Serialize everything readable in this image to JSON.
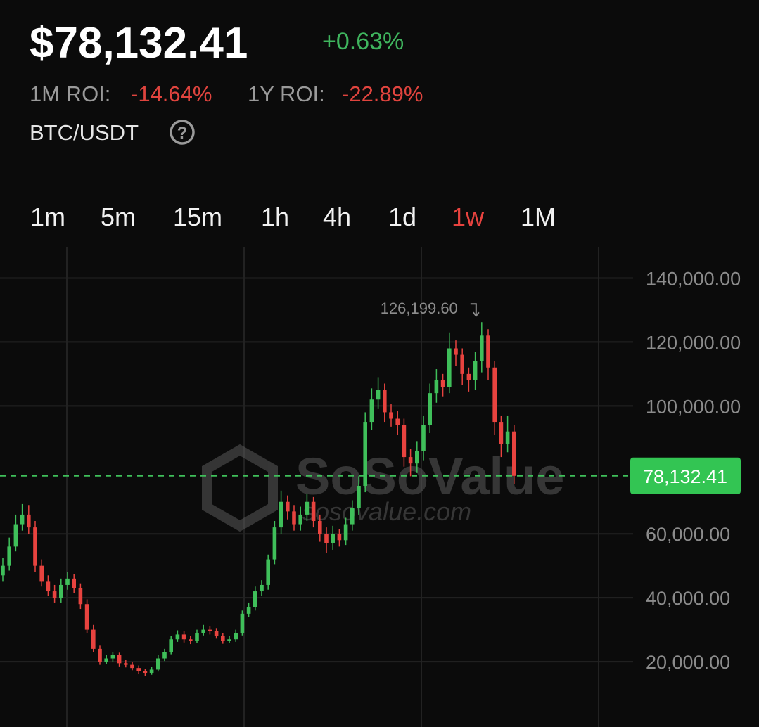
{
  "header": {
    "price": "$78,132.41",
    "change": "+0.63%",
    "roi": [
      {
        "label": "1M ROI:",
        "value": "-14.64%"
      },
      {
        "label": "1Y ROI:",
        "value": "-22.89%"
      }
    ],
    "pair": "BTC/USDT",
    "help": "?"
  },
  "intervals": {
    "items": [
      "1m",
      "5m",
      "15m",
      "1h",
      "4h",
      "1d",
      "1w",
      "1M"
    ],
    "active": "1w"
  },
  "chart_data": {
    "type": "candlestick",
    "up_color": "#3fbf5a",
    "down_color": "#e8433f",
    "open": [
      47000,
      50000,
      56000,
      63000,
      66000,
      62000,
      50000,
      45000,
      42000,
      40000,
      44000,
      46000,
      43000,
      38000,
      30000,
      24000,
      20000,
      21000,
      22000,
      19500,
      19000,
      18000,
      17000,
      16500,
      17500,
      21000,
      23000,
      27000,
      28500,
      27000,
      26500,
      29000,
      30000,
      29500,
      28000,
      26500,
      27000,
      29000,
      35000,
      37000,
      42000,
      44000,
      52000,
      62000,
      70000,
      67000,
      63000,
      66000,
      70000,
      64000,
      60000,
      57000,
      60000,
      58000,
      63000,
      68000,
      75000,
      95000,
      102000,
      105000,
      98000,
      96000,
      94000,
      84000,
      82000,
      86000,
      94000,
      104000,
      108000,
      106000,
      118000,
      116000,
      110000,
      108000,
      114000,
      122000,
      112000,
      95000,
      88000,
      92000
    ],
    "high": [
      52500,
      58800,
      66000,
      69300,
      69000,
      64000,
      52000,
      47000,
      44000,
      46000,
      48000,
      47500,
      44500,
      39500,
      31500,
      25000,
      22000,
      23000,
      22800,
      20500,
      20000,
      18800,
      17800,
      18300,
      22000,
      24000,
      28000,
      29800,
      29500,
      28000,
      30000,
      31500,
      31000,
      30500,
      29000,
      28000,
      30000,
      36000,
      38500,
      43500,
      45500,
      53500,
      64000,
      73500,
      72000,
      69000,
      68500,
      72500,
      71500,
      66000,
      62000,
      62500,
      61500,
      65000,
      70500,
      78000,
      98000,
      105500,
      109000,
      107000,
      100500,
      98500,
      96000,
      86500,
      89000,
      97000,
      107000,
      111500,
      110000,
      123000,
      120500,
      118000,
      112000,
      117000,
      126199.6,
      124000,
      114000,
      97000,
      97000,
      94000
    ],
    "low": [
      45000,
      48500,
      54500,
      61000,
      60000,
      48000,
      43500,
      40500,
      38500,
      38500,
      42500,
      41500,
      36500,
      29000,
      23000,
      19000,
      19200,
      20000,
      18500,
      18200,
      17300,
      16200,
      15600,
      15900,
      16900,
      20200,
      22300,
      26200,
      26000,
      25500,
      25800,
      28200,
      28500,
      27200,
      25600,
      25800,
      26200,
      28200,
      34000,
      36000,
      40500,
      42500,
      50500,
      60000,
      64500,
      61000,
      61000,
      64000,
      62000,
      57500,
      54000,
      55000,
      56000,
      56500,
      61000,
      66000,
      73000,
      92500,
      99000,
      95000,
      93500,
      91000,
      81000,
      78000,
      79000,
      83000,
      91500,
      101000,
      103000,
      104000,
      112500,
      106500,
      104500,
      105000,
      110500,
      108000,
      91000,
      84000,
      85500,
      75500
    ],
    "close": [
      50000,
      56000,
      63000,
      66000,
      62000,
      50000,
      45000,
      42000,
      40000,
      44000,
      46000,
      43000,
      38000,
      30000,
      24000,
      20000,
      21000,
      22000,
      19500,
      19000,
      18000,
      17000,
      16500,
      17500,
      21000,
      23000,
      27000,
      28500,
      27000,
      26500,
      29000,
      30000,
      29500,
      28000,
      26500,
      27000,
      29000,
      35000,
      37000,
      42000,
      44000,
      52000,
      62000,
      70000,
      67000,
      63000,
      66000,
      70000,
      64000,
      60000,
      57000,
      60000,
      58000,
      63000,
      68000,
      75000,
      95000,
      102000,
      105000,
      98000,
      96000,
      94000,
      84000,
      82000,
      86000,
      94000,
      104000,
      108000,
      106000,
      118000,
      116000,
      110000,
      108000,
      114000,
      122000,
      112000,
      95000,
      88000,
      92000,
      78132.41
    ],
    "ylim": [
      0,
      150000
    ],
    "yticks": [
      {
        "value": 20000,
        "label": "20,000.00"
      },
      {
        "value": 40000,
        "label": "40,000.00"
      },
      {
        "value": 60000,
        "label": "60,000.00"
      },
      {
        "value": 100000,
        "label": "100,000.00"
      },
      {
        "value": 120000,
        "label": "120,000.00"
      },
      {
        "value": 140000,
        "label": "140,000.00"
      }
    ],
    "grid": true,
    "last_price": {
      "value": 78132.41,
      "label": "78,132.41"
    },
    "max_annotation": {
      "value": 126199.6,
      "label": "126,199.60"
    },
    "watermark": "SoSoValue",
    "watermark_url": "sosovalue.com"
  }
}
